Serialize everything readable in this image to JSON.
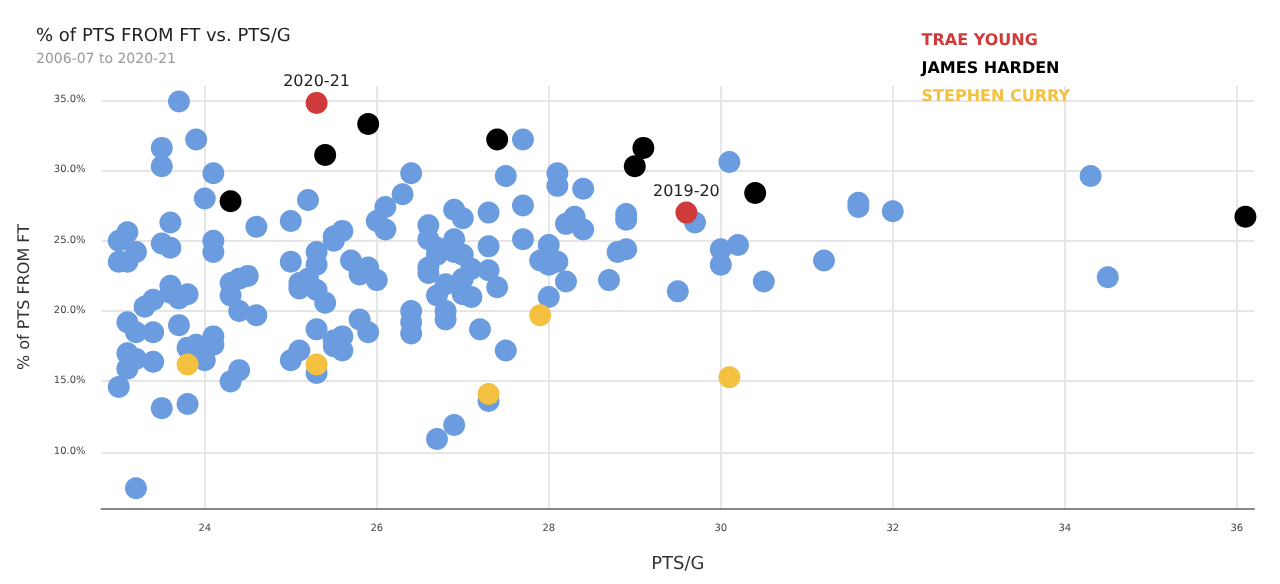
{
  "chart_data": {
    "type": "scatter",
    "title": "% of PTS FROM FT vs. PTS/G",
    "subtitle": "2006-07 to 2020-21",
    "xlabel": "PTS/G",
    "ylabel": "% of PTS FROM FT",
    "xlim": [
      22.8,
      36.2
    ],
    "xticks": [
      24,
      26,
      28,
      30,
      32,
      34,
      36
    ],
    "ylim": [
      6,
      36
    ],
    "yticks": [
      {
        "value": 10,
        "label": "10.0%"
      },
      {
        "value": 15,
        "label": "15.0%"
      },
      {
        "value": 20,
        "label": "20.0%"
      },
      {
        "value": 25,
        "label": "25.0%"
      },
      {
        "value": 30,
        "label": "30.0%"
      },
      {
        "value": 35,
        "label": "35.0%"
      }
    ],
    "grid": true,
    "legend": "top right",
    "marker": "circle",
    "annotations": [
      {
        "text": "2020-21",
        "x": 25.3,
        "y": 34.8
      },
      {
        "text": "2019-20",
        "x": 29.6,
        "y": 27.0
      }
    ],
    "series": [
      {
        "color": "#6c9ce0",
        "x": [
          23.7,
          23.5,
          23.5,
          23.9,
          24.1,
          24.0,
          23.0,
          23.1,
          23.0,
          23.2,
          23.1,
          23.6,
          23.5,
          23.6,
          24.1,
          24.1,
          24.6,
          23.6,
          23.6,
          23.7,
          23.8,
          23.4,
          23.3,
          23.1,
          23.2,
          23.4,
          23.7,
          23.1,
          23.2,
          23.1,
          23.4,
          23.0,
          23.5,
          23.8,
          23.2,
          23.8,
          23.9,
          24.1,
          24.1,
          24.0,
          24.3,
          24.3,
          24.4,
          24.5,
          24.4,
          24.6,
          24.3,
          24.4,
          25.0,
          25.2,
          25.0,
          25.1,
          25.1,
          25.2,
          25.3,
          25.3,
          25.3,
          25.4,
          25.3,
          25.0,
          25.1,
          25.3,
          25.5,
          25.6,
          25.5,
          25.7,
          25.9,
          25.8,
          26.0,
          25.8,
          25.9,
          25.5,
          25.6,
          25.5,
          25.6,
          26.0,
          26.1,
          26.1,
          26.4,
          26.3,
          26.4,
          26.4,
          26.4,
          27.7,
          27.5,
          28.1,
          28.1,
          28.4,
          27.7,
          27.3,
          26.9,
          27.0,
          26.6,
          26.6,
          26.9,
          26.7,
          26.7,
          27.0,
          26.9,
          27.3,
          27.7,
          28.0,
          26.6,
          26.6,
          27.1,
          27.3,
          27.0,
          26.8,
          27.4,
          27.0,
          27.1,
          26.7,
          27.9,
          28.0,
          28.1,
          28.2,
          28.0,
          28.2,
          28.3,
          28.4,
          28.7,
          28.8,
          28.9,
          28.9,
          28.9,
          29.7,
          29.5,
          30.1,
          30.0,
          30.0,
          30.2,
          30.5,
          31.2,
          26.8,
          26.8,
          27.2,
          27.5,
          27.3,
          26.9,
          26.7,
          31.6,
          31.6,
          32.0,
          34.3,
          34.5
        ],
        "values": [
          34.9,
          31.6,
          30.3,
          32.2,
          29.8,
          28.0,
          25.0,
          25.6,
          23.5,
          24.2,
          23.5,
          26.3,
          24.8,
          24.5,
          25.0,
          24.2,
          26.0,
          21.8,
          21.3,
          20.9,
          21.2,
          20.8,
          20.3,
          19.2,
          18.5,
          18.5,
          19.0,
          17.0,
          16.6,
          15.9,
          16.4,
          14.6,
          13.1,
          13.4,
          7.4,
          17.4,
          17.6,
          18.2,
          17.6,
          16.5,
          22.0,
          21.1,
          22.3,
          22.5,
          20.0,
          19.7,
          15.0,
          15.8,
          26.4,
          27.9,
          23.5,
          22.0,
          21.6,
          22.3,
          24.2,
          23.3,
          21.5,
          20.6,
          18.7,
          16.5,
          17.2,
          15.6,
          25.0,
          25.7,
          25.3,
          23.6,
          23.1,
          22.6,
          22.2,
          19.4,
          18.5,
          17.9,
          18.2,
          17.5,
          17.2,
          26.4,
          27.4,
          25.8,
          29.8,
          28.3,
          20.0,
          19.2,
          18.4,
          32.2,
          29.6,
          29.8,
          28.9,
          28.7,
          27.5,
          27.0,
          27.2,
          26.6,
          26.1,
          25.1,
          25.1,
          24.5,
          24.0,
          24.0,
          24.2,
          24.6,
          25.1,
          24.7,
          23.1,
          22.7,
          23.0,
          22.9,
          22.3,
          21.9,
          21.7,
          21.2,
          21.0,
          21.1,
          23.6,
          23.3,
          23.5,
          22.1,
          21.0,
          26.2,
          26.7,
          25.8,
          22.2,
          24.2,
          24.4,
          26.5,
          26.9,
          26.3,
          21.4,
          30.6,
          24.4,
          23.3,
          24.7,
          22.1,
          23.6,
          20.0,
          19.4,
          18.7,
          17.2,
          13.6,
          11.9,
          10.9,
          27.7,
          27.4,
          27.1,
          29.6,
          22.4
        ]
      },
      {
        "name": "TRAE YOUNG",
        "color": "#cf3a3a",
        "x": [
          25.3,
          29.6
        ],
        "values": [
          34.8,
          27.0
        ]
      },
      {
        "name": "JAMES HARDEN",
        "color": "#000000",
        "x": [
          24.3,
          25.9,
          25.4,
          27.4,
          29.0,
          29.1,
          30.4,
          36.1
        ],
        "values": [
          27.8,
          33.3,
          31.1,
          32.2,
          30.3,
          31.6,
          28.4,
          26.7
        ]
      },
      {
        "name": "STEPHEN CURRY",
        "color": "#f3c13f",
        "x": [
          23.8,
          25.3,
          27.9,
          30.1,
          27.3
        ],
        "values": [
          16.2,
          16.2,
          19.7,
          15.3,
          14.1
        ]
      }
    ]
  }
}
